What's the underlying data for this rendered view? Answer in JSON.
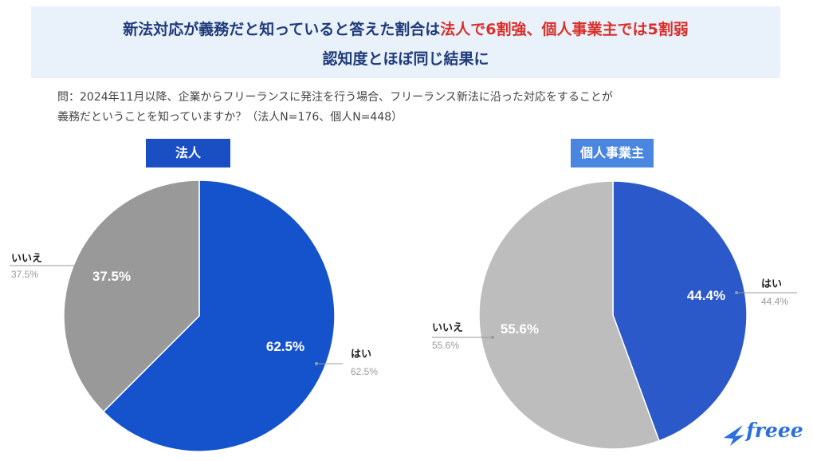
{
  "header": {
    "line1_part1": "新法対応が義務だと知っていると答えた割合は",
    "line1_highlight": "法人で6割強、個人事業主では5割弱",
    "line2": "認知度とほぼ同じ結果に"
  },
  "question": {
    "line1": "問：2024年11月以降、企業からフリーランスに発注を行う場合、フリーランス新法に沿った対応をすることが",
    "line2": "義務だということを知っていますか？（法人N=176、個人N=448）"
  },
  "colors": {
    "corp_label_bg": "#1a4fc4",
    "indiv_label_bg": "#4a86e0",
    "corp_yes": "#1553cc",
    "corp_no": "#999999",
    "indiv_yes": "#2b59c9",
    "indiv_no": "#bdbdbd",
    "logo": "#2a6fdb"
  },
  "logo": {
    "text": "freee"
  },
  "chart_data": [
    {
      "type": "pie",
      "title": "法人",
      "slices": [
        {
          "label": "はい",
          "value": 62.5,
          "display": "62.5%"
        },
        {
          "label": "いいえ",
          "value": 37.5,
          "display": "37.5%"
        }
      ]
    },
    {
      "type": "pie",
      "title": "個人事業主",
      "slices": [
        {
          "label": "はい",
          "value": 44.4,
          "display": "44.4%"
        },
        {
          "label": "いいえ",
          "value": 55.6,
          "display": "55.6%"
        }
      ]
    }
  ]
}
